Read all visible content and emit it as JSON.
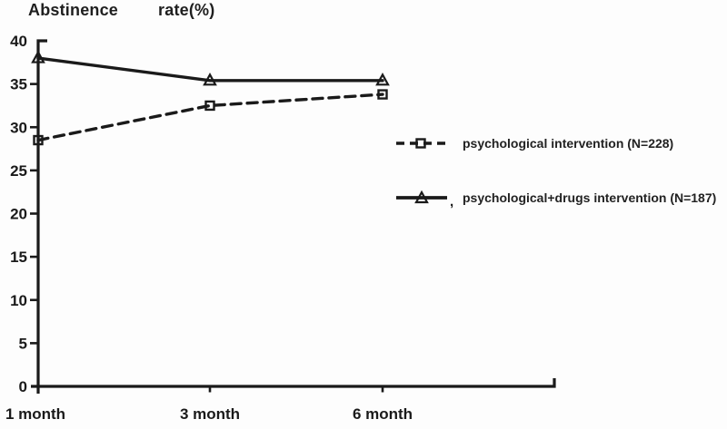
{
  "title": {
    "part1": "Abstinence",
    "part2": "rate(%)"
  },
  "legend": {
    "entries": [
      {
        "prefix": "",
        "label": "psychological intervention (N=228)",
        "marker": "square",
        "line_style": "dashed"
      },
      {
        "prefix": ",",
        "label": "psychological+drugs intervention (N=187)",
        "marker": "triangle",
        "line_style": "solid"
      }
    ]
  },
  "chart_data": {
    "type": "line",
    "title": "Abstinence rate(%)",
    "ylabel": "Abstinence rate(%)",
    "xlabel": "",
    "categories": [
      "1 month",
      "3 month",
      "6 month"
    ],
    "series": [
      {
        "name": "psychological intervention (N=228)",
        "line_style": "dashed",
        "marker": "square",
        "values": [
          28.5,
          32.5,
          33.8
        ]
      },
      {
        "name": "psychological+drugs intervention (N=187)",
        "line_style": "solid",
        "marker": "triangle",
        "values": [
          38,
          35.4,
          35.4
        ]
      }
    ],
    "ylim": [
      0,
      40
    ],
    "yticks": [
      0,
      5,
      10,
      15,
      20,
      25,
      30,
      35,
      40
    ],
    "grid": false,
    "legend_position": "right",
    "line_color": "#1a1a1a",
    "background_color": "#fdfdfd"
  }
}
